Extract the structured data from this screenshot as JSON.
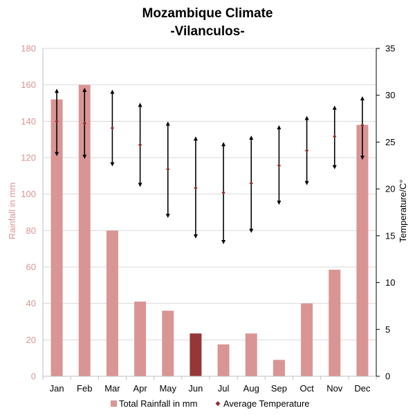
{
  "chart_data": {
    "type": "bar",
    "title": "Mozambique Climate",
    "subtitle": "-Vilanculos-",
    "categories": [
      "Jan",
      "Feb",
      "Mar",
      "Apr",
      "May",
      "Jun",
      "Jul",
      "Aug",
      "Sep",
      "Oct",
      "Nov",
      "Dec"
    ],
    "ylabel": "Rainfall in mm",
    "y2label": "Temperature/C°",
    "ylim": [
      0,
      180
    ],
    "y2lim": [
      0,
      35
    ],
    "yticks": [
      "0",
      "20",
      "40",
      "60",
      "80",
      "100",
      "120",
      "140",
      "160",
      "180"
    ],
    "y2ticks": [
      "0",
      "5",
      "10",
      "15",
      "20",
      "25",
      "30",
      "35"
    ],
    "grid": true,
    "legend_position": "bottom",
    "colors": {
      "bar": "#D99594",
      "highlight": "#953735",
      "temp": "#000000",
      "temp_marker": "#8B2B2B",
      "left_axis_text": "#D99594"
    },
    "highlight_index": 5,
    "series": [
      {
        "name": "Total Rainfall in mm",
        "type": "bar",
        "axis": "left",
        "values": [
          152,
          160,
          80,
          41,
          36,
          23.5,
          17.5,
          23.5,
          9,
          40,
          58.5,
          138
        ]
      },
      {
        "name": "Average Temperature",
        "type": "range-marker",
        "axis": "right",
        "values": [
          27.2,
          27,
          26.5,
          24.7,
          22.1,
          20.1,
          19.6,
          20.6,
          22.5,
          24.1,
          25.6,
          26.8
        ],
        "max": [
          30.7,
          30.8,
          30.6,
          29.2,
          27.2,
          25.6,
          25,
          25.7,
          26.8,
          27.8,
          28.9,
          29.9
        ],
        "min": [
          23.5,
          23.2,
          22.4,
          20.2,
          16.9,
          14.7,
          14.1,
          15.3,
          18.3,
          20.4,
          22.1,
          23.1
        ]
      }
    ]
  }
}
